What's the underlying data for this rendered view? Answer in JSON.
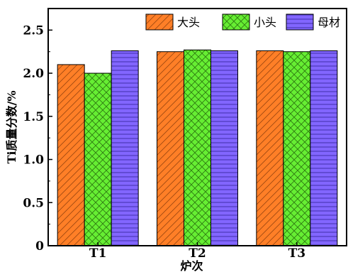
{
  "chart_data": {
    "type": "bar",
    "title": "",
    "xlabel": "炉次",
    "ylabel": "Ti质量分数/%",
    "categories": [
      "T1",
      "T2",
      "T3"
    ],
    "series": [
      {
        "name": "大头",
        "values": [
          2.1,
          2.25,
          2.26
        ],
        "color": "#ff7f27",
        "pattern": "diagonal-hatch"
      },
      {
        "name": "小头",
        "values": [
          2.0,
          2.27,
          2.25
        ],
        "color": "#66ee33",
        "pattern": "cross-hatch"
      },
      {
        "name": "母材",
        "values": [
          2.26,
          2.26,
          2.26
        ],
        "color": "#8266ff",
        "pattern": "horizontal-lines"
      }
    ],
    "ylim": [
      0,
      2.75
    ],
    "yticks": [
      "0",
      "0.5",
      "1.0",
      "1.5",
      "2.0",
      "2.5"
    ],
    "legend_position": "top-right",
    "grid": false
  }
}
